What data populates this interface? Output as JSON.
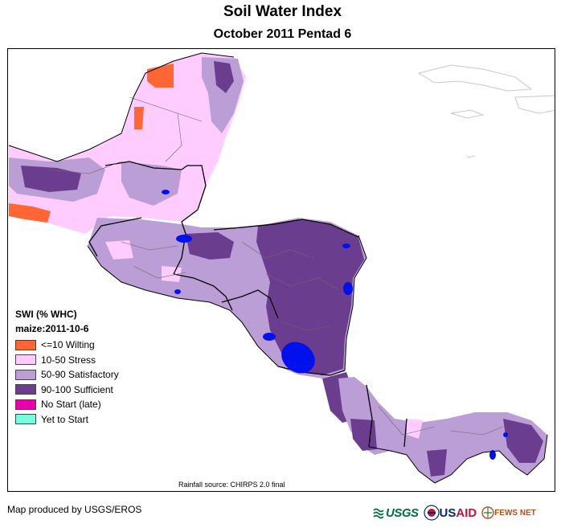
{
  "title": "Soil Water Index",
  "subtitle": "October 2011 Pentad 6",
  "legend": {
    "title": "SWI (% WHC)",
    "subtitle": "maize:2011-10-6",
    "items": [
      {
        "label": "<=10 Wilting",
        "color": "#ff6633"
      },
      {
        "label": "10-50 Stress",
        "color": "#ffccff"
      },
      {
        "label": "50-90 Satisfactory",
        "color": "#bb9ed6"
      },
      {
        "label": "90-100 Sufficient",
        "color": "#6b3d8f"
      },
      {
        "label": "No Start (late)",
        "color": "#e600a9"
      },
      {
        "label": "Yet to Start",
        "color": "#73ffdf"
      }
    ]
  },
  "source_note": "Rainfall source: CHIRPS 2.0 final",
  "credit": "Map produced by USGS/EROS",
  "logos": {
    "usgs": "USGS",
    "usaid_us": "US",
    "usaid_aid": "AID",
    "fews": "FEWS NET"
  },
  "colors": {
    "lake": "#0011ee",
    "border": "#000000",
    "admin": "#6a6a6a",
    "island_outline": "#c8c8c8"
  }
}
